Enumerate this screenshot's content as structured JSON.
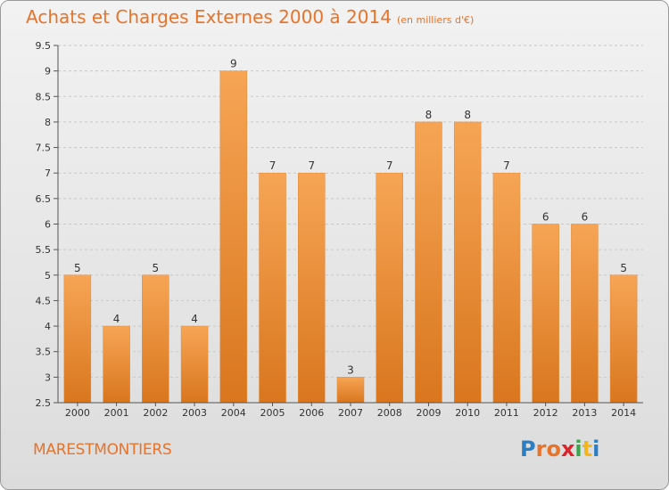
{
  "header": {
    "title": "Achats et Charges Externes 2000 à 2014",
    "subtitle": "(en milliers d'€)"
  },
  "footer": {
    "location": "MARESTMONTIERS",
    "brand": "Proxiti"
  },
  "colors": {
    "accent": "#e8732a",
    "bar_top": "#f6a555",
    "bar_bottom": "#d9761e"
  },
  "chart_data": {
    "type": "bar",
    "title": "Achats et Charges Externes 2000 à 2014",
    "subtitle": "(en milliers d'€)",
    "categories": [
      "2000",
      "2001",
      "2002",
      "2003",
      "2004",
      "2005",
      "2006",
      "2007",
      "2008",
      "2009",
      "2010",
      "2011",
      "2012",
      "2013",
      "2014"
    ],
    "values": [
      5,
      4,
      5,
      4,
      9,
      7,
      7,
      3,
      7,
      8,
      8,
      7,
      6,
      6,
      5
    ],
    "data_labels": [
      "5",
      "4",
      "5",
      "4",
      "9",
      "7",
      "7",
      "3",
      "7",
      "8",
      "8",
      "7",
      "6",
      "6",
      "5"
    ],
    "yticks": [
      "2.5",
      "3",
      "3.5",
      "4",
      "4.5",
      "5",
      "5.5",
      "6",
      "6.5",
      "7",
      "7.5",
      "8",
      "8.5",
      "9",
      "9.5"
    ],
    "ylim": [
      2.5,
      9.5
    ],
    "xlabel": "",
    "ylabel": "",
    "grid": true,
    "legend": false
  }
}
